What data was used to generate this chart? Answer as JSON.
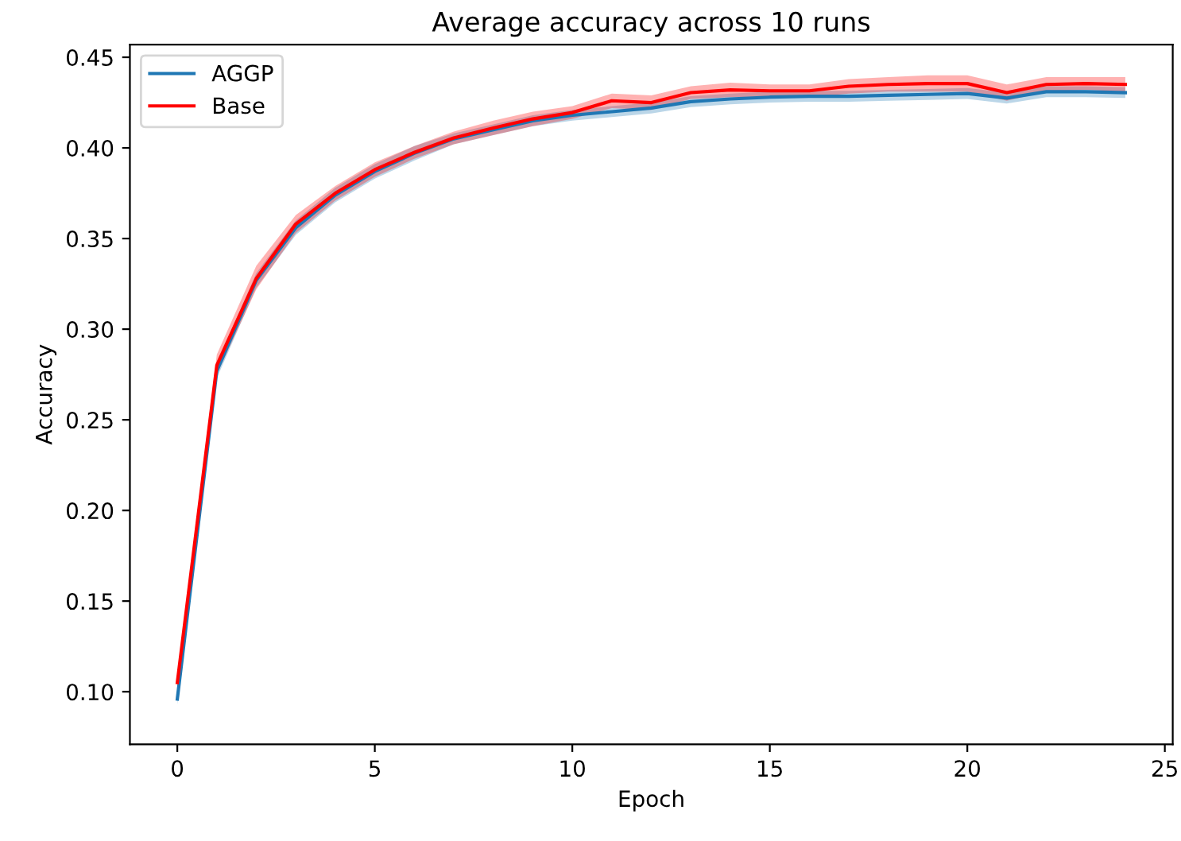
{
  "chart_data": {
    "type": "line",
    "title": "Average accuracy across 10 runs",
    "xlabel": "Epoch",
    "ylabel": "Accuracy",
    "x": [
      0,
      1,
      2,
      3,
      4,
      5,
      6,
      7,
      8,
      9,
      10,
      11,
      12,
      13,
      14,
      15,
      16,
      17,
      18,
      19,
      20,
      21,
      22,
      23,
      24
    ],
    "series": [
      {
        "name": "AGGP",
        "color": "#1f77b4",
        "values": [
          0.096,
          0.277,
          0.327,
          0.356,
          0.374,
          0.387,
          0.397,
          0.405,
          0.41,
          0.415,
          0.418,
          0.42,
          0.422,
          0.4255,
          0.427,
          0.428,
          0.4285,
          0.4285,
          0.429,
          0.4295,
          0.43,
          0.4275,
          0.431,
          0.431,
          0.4305
        ],
        "lower": [
          0.093,
          0.273,
          0.323,
          0.352,
          0.37,
          0.383,
          0.393,
          0.402,
          0.407,
          0.412,
          0.415,
          0.417,
          0.419,
          0.4225,
          0.424,
          0.425,
          0.4255,
          0.4255,
          0.426,
          0.4265,
          0.427,
          0.4245,
          0.428,
          0.428,
          0.4275
        ],
        "upper": [
          0.099,
          0.281,
          0.331,
          0.36,
          0.378,
          0.391,
          0.401,
          0.408,
          0.413,
          0.418,
          0.421,
          0.423,
          0.425,
          0.4285,
          0.43,
          0.431,
          0.4315,
          0.4315,
          0.432,
          0.4325,
          0.433,
          0.4305,
          0.434,
          0.434,
          0.4335
        ]
      },
      {
        "name": "Base",
        "color": "#ff0000",
        "values": [
          0.105,
          0.28,
          0.328,
          0.358,
          0.375,
          0.388,
          0.3975,
          0.4055,
          0.411,
          0.416,
          0.4195,
          0.426,
          0.425,
          0.4305,
          0.432,
          0.4315,
          0.4315,
          0.434,
          0.435,
          0.4355,
          0.4355,
          0.4305,
          0.435,
          0.4355,
          0.435
        ],
        "lower": [
          0.101,
          0.275,
          0.322,
          0.353,
          0.371,
          0.384,
          0.394,
          0.402,
          0.407,
          0.412,
          0.416,
          0.422,
          0.421,
          0.427,
          0.428,
          0.428,
          0.428,
          0.43,
          0.431,
          0.431,
          0.431,
          0.426,
          0.431,
          0.432,
          0.431
        ],
        "upper": [
          0.109,
          0.286,
          0.335,
          0.363,
          0.379,
          0.392,
          0.401,
          0.409,
          0.415,
          0.42,
          0.423,
          0.43,
          0.429,
          0.434,
          0.436,
          0.435,
          0.435,
          0.438,
          0.439,
          0.44,
          0.44,
          0.435,
          0.439,
          0.439,
          0.439
        ]
      }
    ],
    "xlim": [
      -1.2,
      25.2
    ],
    "ylim": [
      0.071,
      0.457
    ],
    "xticks": [
      0,
      5,
      10,
      15,
      20,
      25
    ],
    "yticks": [
      {
        "value": 0.1,
        "label": "0.10"
      },
      {
        "value": 0.15,
        "label": "0.15"
      },
      {
        "value": 0.2,
        "label": "0.20"
      },
      {
        "value": 0.25,
        "label": "0.25"
      },
      {
        "value": 0.3,
        "label": "0.30"
      },
      {
        "value": 0.35,
        "label": "0.35"
      },
      {
        "value": 0.4,
        "label": "0.40"
      },
      {
        "value": 0.45,
        "label": "0.45"
      }
    ],
    "legend": "top left",
    "grid": false
  }
}
